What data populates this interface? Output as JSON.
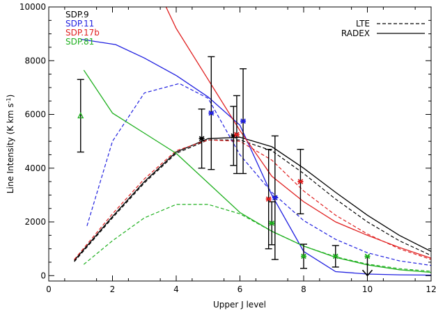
{
  "chart_data": {
    "type": "line",
    "xlabel": "Upper J level",
    "ylabel": "Line Intensity (K km s",
    "ylabel_sup": "-1",
    "ylabel_close": ")",
    "xlim": [
      0,
      12
    ],
    "ylim": [
      -200,
      10000
    ],
    "xticks": [
      0,
      2,
      4,
      6,
      8,
      10,
      12
    ],
    "yticks": [
      0,
      2000,
      4000,
      6000,
      8000,
      10000
    ],
    "grid": false,
    "source_legend": {
      "position": "top-left",
      "entries": [
        {
          "label": "SDP.9",
          "color": "#000000"
        },
        {
          "label": "SDP.11",
          "color": "#1f1fe0"
        },
        {
          "label": "SDP.17b",
          "color": "#e01f1f"
        },
        {
          "label": "SDP.81",
          "color": "#1fb01f"
        }
      ]
    },
    "model_legend": {
      "position": "top-right",
      "entries": [
        {
          "label": "LTE",
          "style": "dashed"
        },
        {
          "label": "RADEX",
          "style": "solid"
        }
      ]
    },
    "series": [
      {
        "color": "#000000",
        "radex": [
          [
            0.8,
            560
          ],
          [
            2,
            2200
          ],
          [
            3,
            3500
          ],
          [
            4,
            4600
          ],
          [
            5,
            5100
          ],
          [
            6,
            5150
          ],
          [
            7,
            4800
          ],
          [
            8,
            4000
          ],
          [
            9,
            3100
          ],
          [
            10,
            2250
          ],
          [
            11,
            1500
          ],
          [
            12,
            900
          ]
        ],
        "lte": [
          [
            0.8,
            520
          ],
          [
            2,
            2150
          ],
          [
            3,
            3450
          ],
          [
            4,
            4550
          ],
          [
            5,
            5050
          ],
          [
            6,
            5050
          ],
          [
            7,
            4650
          ],
          [
            8,
            3800
          ],
          [
            9,
            2850
          ],
          [
            10,
            2000
          ],
          [
            11,
            1300
          ],
          [
            12,
            750
          ]
        ],
        "points": [
          {
            "x": 4.8,
            "y": 5100,
            "err": 1100,
            "marker": "star"
          },
          {
            "x": 5.8,
            "y": 5200,
            "err": 1100,
            "marker": "star"
          }
        ]
      },
      {
        "color": "#1f1fe0",
        "radex": [
          [
            1,
            8800
          ],
          [
            2.1,
            8600
          ],
          [
            3,
            8100
          ],
          [
            4,
            7450
          ],
          [
            5,
            6650
          ],
          [
            6,
            5600
          ],
          [
            7,
            3000
          ],
          [
            8,
            900
          ],
          [
            9,
            150
          ],
          [
            10,
            60
          ],
          [
            11,
            30
          ],
          [
            12,
            20
          ]
        ],
        "lte": [
          [
            1.2,
            1850
          ],
          [
            2,
            5000
          ],
          [
            3,
            6800
          ],
          [
            4.1,
            7150
          ],
          [
            5,
            6600
          ],
          [
            6,
            4500
          ],
          [
            7,
            3100
          ],
          [
            8,
            2050
          ],
          [
            9,
            1350
          ],
          [
            10,
            850
          ],
          [
            11,
            550
          ],
          [
            12,
            380
          ]
        ],
        "points": [
          {
            "x": 5.1,
            "y": 6050,
            "err": 2100,
            "marker": "star"
          },
          {
            "x": 6.1,
            "y": 5750,
            "err": 1950,
            "marker": "star"
          },
          {
            "x": 7.1,
            "y": 2900,
            "err": 2300,
            "marker": "star"
          }
        ]
      },
      {
        "color": "#e01f1f",
        "radex": [
          [
            3.6,
            10200
          ],
          [
            4,
            9200
          ],
          [
            5,
            7300
          ],
          [
            6,
            5400
          ],
          [
            7,
            3700
          ],
          [
            8,
            2750
          ],
          [
            9,
            2000
          ],
          [
            10,
            1500
          ],
          [
            11,
            1050
          ],
          [
            12,
            650
          ]
        ],
        "lte": [
          [
            0.8,
            600
          ],
          [
            2,
            2300
          ],
          [
            3,
            3600
          ],
          [
            4,
            4650
          ],
          [
            5,
            5050
          ],
          [
            6,
            5000
          ],
          [
            7,
            4300
          ],
          [
            8,
            3150
          ],
          [
            9,
            2250
          ],
          [
            10,
            1550
          ],
          [
            11,
            1000
          ],
          [
            12,
            600
          ]
        ],
        "points": [
          {
            "x": 5.9,
            "y": 5250,
            "err": 1450,
            "marker": "star"
          },
          {
            "x": 6.9,
            "y": 2850,
            "err": 1850,
            "marker": "star"
          },
          {
            "x": 7.9,
            "y": 3500,
            "err": 1200,
            "marker": "star"
          }
        ]
      },
      {
        "color": "#1fb01f",
        "radex": [
          [
            1.1,
            7650
          ],
          [
            2,
            6050
          ],
          [
            3,
            5300
          ],
          [
            4,
            4550
          ],
          [
            5,
            3450
          ],
          [
            6,
            2350
          ],
          [
            7,
            1650
          ],
          [
            8,
            1100
          ],
          [
            9,
            680
          ],
          [
            10,
            400
          ],
          [
            11,
            220
          ],
          [
            12,
            120
          ]
        ],
        "lte": [
          [
            1.1,
            420
          ],
          [
            2,
            1300
          ],
          [
            3,
            2150
          ],
          [
            4,
            2650
          ],
          [
            5,
            2650
          ],
          [
            6,
            2300
          ],
          [
            7,
            1650
          ],
          [
            8,
            1100
          ],
          [
            9,
            700
          ],
          [
            10,
            430
          ],
          [
            11,
            260
          ],
          [
            12,
            160
          ]
        ],
        "points": [
          {
            "x": 1,
            "y": 5950,
            "err": 1350,
            "marker": "triangle"
          },
          {
            "x": 7,
            "y": 1950,
            "err": 800,
            "marker": "star"
          },
          {
            "x": 8,
            "y": 720,
            "err": 450,
            "marker": "star"
          },
          {
            "x": 9,
            "y": 720,
            "err": 400,
            "marker": "star"
          },
          {
            "x": 10,
            "y": 720,
            "marker": "star",
            "upper_limit": true
          }
        ]
      }
    ]
  }
}
